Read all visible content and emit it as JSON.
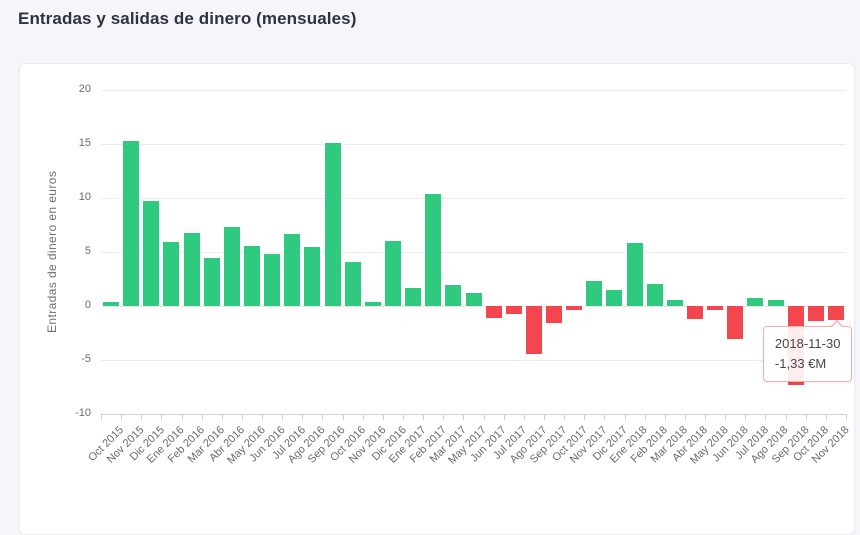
{
  "page": {
    "title": "Entradas y salidas de dinero (mensuales)"
  },
  "chart_data": {
    "type": "bar",
    "title": "Entradas y salidas de dinero (mensuales)",
    "xlabel": "",
    "ylabel": "Entradas de dinero en euros",
    "ylim": [
      -10,
      20
    ],
    "yticks": [
      20,
      15,
      10,
      5,
      0,
      -5,
      -10
    ],
    "grid": true,
    "legend": false,
    "categories": [
      "Oct 2015",
      "Nov 2015",
      "Dic 2015",
      "Ene 2016",
      "Feb 2016",
      "Mar 2016",
      "Abr 2016",
      "May 2016",
      "Jun 2016",
      "Jul 2016",
      "Ago 2016",
      "Sep 2016",
      "Oct 2016",
      "Nov 2016",
      "Dic 2016",
      "Ene 2017",
      "Feb 2017",
      "Mar 2017",
      "May 2017",
      "Jun 2017",
      "Jul 2017",
      "Ago 2017",
      "Sep 2017",
      "Oct 2017",
      "Nov 2017",
      "Dic 2017",
      "Ene 2018",
      "Feb 2018",
      "Mar 2018",
      "Abr 2018",
      "May 2018",
      "Jun 2018",
      "Jul 2018",
      "Ago 2018",
      "Sep 2018",
      "Oct 2018",
      "Nov 2018"
    ],
    "values": [
      0.4,
      15.3,
      9.7,
      5.9,
      6.8,
      4.4,
      7.3,
      5.6,
      4.8,
      6.7,
      5.5,
      15.1,
      4.1,
      0.4,
      6.0,
      1.7,
      10.4,
      1.9,
      1.2,
      -1.1,
      -0.7,
      -4.4,
      -1.6,
      -0.4,
      2.3,
      1.5,
      5.8,
      2.0,
      0.6,
      -1.2,
      -0.4,
      -3.1,
      0.7,
      0.6,
      -7.3,
      -1.4,
      -1.33
    ],
    "colors": {
      "positive": "#2fc980",
      "negative": "#f4464e"
    }
  },
  "tooltip": {
    "date": "2018-11-30",
    "value": "-1,33 €M",
    "target_category": "Nov 2018"
  }
}
